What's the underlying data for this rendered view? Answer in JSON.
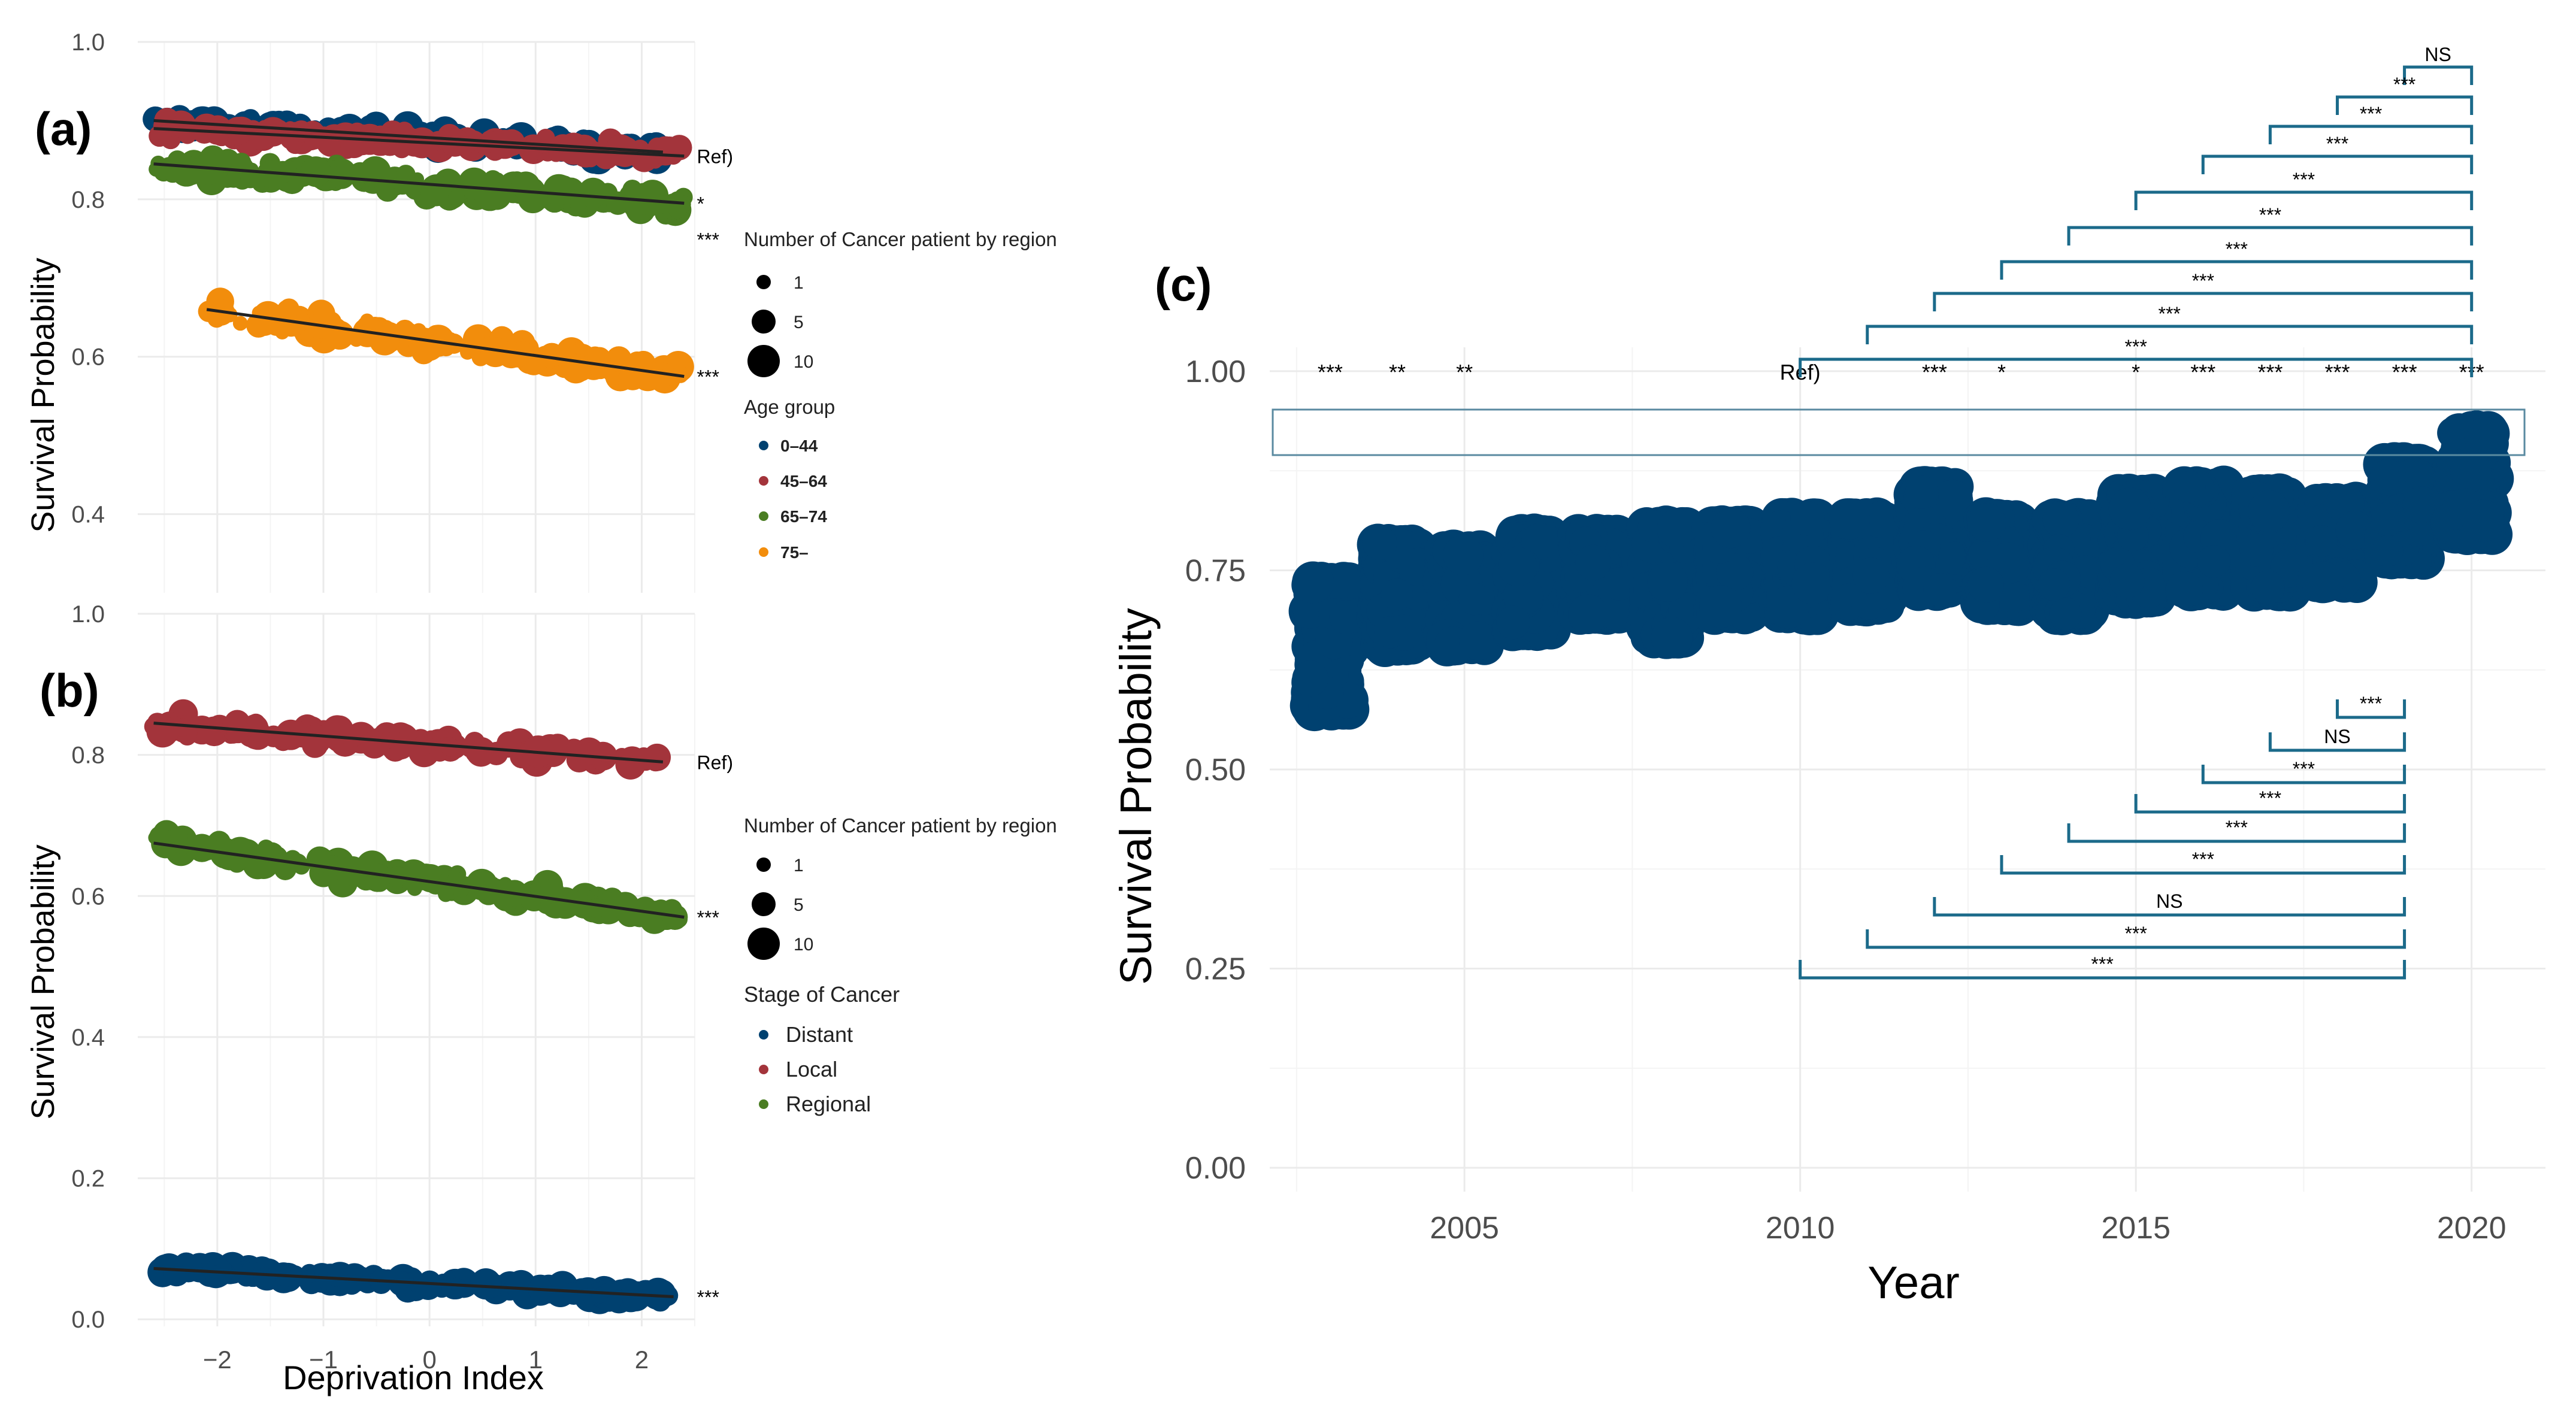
{
  "figure": {
    "colors": {
      "age_0_44": "#004170",
      "age_45_64": "#a3343b",
      "age_65_74": "#4a7d22",
      "age_75": "#f28d0c",
      "stage_distant": "#004170",
      "stage_local": "#a3343b",
      "stage_regional": "#4a7d22",
      "year_points": "#004170",
      "bracket": "#1b6a8a",
      "ref_box": "#5a8aa0"
    }
  },
  "chart_data": [
    {
      "id": "panel-a",
      "panel_label": "(a)",
      "type": "scatter",
      "xlabel": "",
      "ylabel": "Survival Probability",
      "xlim": [
        -2.75,
        2.5
      ],
      "ylim": [
        0.3,
        1.0
      ],
      "x_ticks": [
        -2,
        -1,
        0,
        1,
        2
      ],
      "x_tick_labels": [],
      "y_ticks": [
        0.4,
        0.6,
        0.8,
        1.0
      ],
      "y_tick_labels": [
        "0.4",
        "0.6",
        "0.8",
        "1.0"
      ],
      "grid": true,
      "series": [
        {
          "name": "0–44",
          "color": "#004170",
          "trend": [
            0.9,
            0.86
          ],
          "x_range": [
            -2.6,
            2.2
          ],
          "jitter": 0.016,
          "significance": ""
        },
        {
          "name": "45–64",
          "color": "#a3343b",
          "trend": [
            0.89,
            0.855
          ],
          "x_range": [
            -2.6,
            2.4
          ],
          "jitter": 0.016,
          "significance": "Ref)"
        },
        {
          "name": "65–74",
          "color": "#4a7d22",
          "trend": [
            0.845,
            0.795
          ],
          "x_range": [
            -2.6,
            2.4
          ],
          "jitter": 0.02,
          "significance": "*"
        },
        {
          "name": "75–",
          "color": "#f28d0c",
          "trend": [
            0.66,
            0.575
          ],
          "x_range": [
            -2.1,
            2.4
          ],
          "jitter": 0.02,
          "significance": "***"
        }
      ],
      "extra_significance": "***",
      "legend": {
        "size_title": "Number of Cancer patient by region",
        "size_items": [
          "1",
          "5",
          "10"
        ],
        "color_title": "Age group",
        "color_items": [
          "0–44",
          "45–64",
          "65–74",
          "75–"
        ]
      }
    },
    {
      "id": "panel-b",
      "panel_label": "(b)",
      "type": "scatter",
      "xlabel": "Deprivation Index",
      "ylabel": "Survival Probability",
      "xlim": [
        -2.75,
        2.5
      ],
      "ylim": [
        -0.01,
        1.0
      ],
      "x_ticks": [
        -2,
        -1,
        0,
        1,
        2
      ],
      "x_tick_labels": [
        "−2",
        "−1",
        "0",
        "1",
        "2"
      ],
      "y_ticks": [
        0.0,
        0.2,
        0.4,
        0.6,
        0.8,
        1.0
      ],
      "y_tick_labels": [
        "0.0",
        "0.2",
        "0.4",
        "0.6",
        "0.8",
        "1.0"
      ],
      "grid": true,
      "series": [
        {
          "name": "Local",
          "color": "#a3343b",
          "trend": [
            0.845,
            0.79
          ],
          "x_range": [
            -2.6,
            2.2
          ],
          "jitter": 0.018,
          "significance": "Ref)"
        },
        {
          "name": "Regional",
          "color": "#4a7d22",
          "trend": [
            0.675,
            0.57
          ],
          "x_range": [
            -2.6,
            2.4
          ],
          "jitter": 0.02,
          "significance": "***"
        },
        {
          "name": "Distant",
          "color": "#004170",
          "trend": [
            0.072,
            0.032
          ],
          "x_range": [
            -2.6,
            2.3
          ],
          "jitter": 0.012,
          "significance": "***"
        }
      ],
      "legend": {
        "size_title": "Number of Cancer patient by region",
        "size_items": [
          "1",
          "5",
          "10"
        ],
        "color_title": "Stage of Cancer",
        "color_items": [
          "Distant",
          "Local",
          "Regional"
        ]
      }
    },
    {
      "id": "panel-c",
      "panel_label": "(c)",
      "type": "scatter",
      "xlabel": "Year",
      "ylabel": "Survival Probability",
      "xlim": [
        2002.1,
        2021.1
      ],
      "ylim": [
        -0.03,
        1.03
      ],
      "x_ticks": [
        2005,
        2010,
        2015,
        2020
      ],
      "x_tick_labels": [
        "2005",
        "2010",
        "2015",
        "2020"
      ],
      "y_ticks": [
        0.0,
        0.25,
        0.5,
        0.75,
        1.0
      ],
      "y_tick_labels": [
        "0.00",
        "0.25",
        "0.50",
        "0.75",
        "1.00"
      ],
      "grid": true,
      "years": [
        2003,
        2004,
        2005,
        2006,
        2007,
        2008,
        2009,
        2010,
        2011,
        2012,
        2013,
        2014,
        2015,
        2016,
        2017,
        2018,
        2019,
        2020
      ],
      "year_ranges": [
        [
          0.56,
          0.75
        ],
        [
          0.64,
          0.8
        ],
        [
          0.64,
          0.79
        ],
        [
          0.66,
          0.81
        ],
        [
          0.68,
          0.81
        ],
        [
          0.65,
          0.82
        ],
        [
          0.68,
          0.82
        ],
        [
          0.68,
          0.83
        ],
        [
          0.69,
          0.83
        ],
        [
          0.71,
          0.87
        ],
        [
          0.69,
          0.83
        ],
        [
          0.68,
          0.83
        ],
        [
          0.7,
          0.86
        ],
        [
          0.71,
          0.87
        ],
        [
          0.71,
          0.86
        ],
        [
          0.72,
          0.85
        ],
        [
          0.75,
          0.9
        ],
        [
          0.78,
          0.94
        ]
      ],
      "ref_row": [
        "***",
        "**",
        "**",
        "",
        "",
        "",
        "",
        "Ref)",
        "***",
        "*",
        "*",
        "***",
        "***",
        "***",
        "***",
        "***"
      ],
      "ref_row_years": [
        2003,
        2004,
        2005,
        2006,
        2007,
        2008,
        2009,
        2010,
        2012,
        2013,
        2015,
        2016,
        2017,
        2018,
        2019,
        2020
      ],
      "top_brackets": [
        {
          "from": 2019,
          "to": 2020,
          "label": "NS"
        },
        {
          "from": 2018,
          "to": 2020,
          "label": "***"
        },
        {
          "from": 2017,
          "to": 2020,
          "label": "***"
        },
        {
          "from": 2016,
          "to": 2020,
          "label": "***"
        },
        {
          "from": 2015,
          "to": 2020,
          "label": "***"
        },
        {
          "from": 2014,
          "to": 2020,
          "label": "***"
        },
        {
          "from": 2013,
          "to": 2020,
          "label": "***"
        },
        {
          "from": 2012,
          "to": 2020,
          "label": "***"
        },
        {
          "from": 2011,
          "to": 2020,
          "label": "***"
        },
        {
          "from": 2010,
          "to": 2020,
          "label": "***"
        }
      ],
      "bottom_brackets": [
        {
          "from": 2018,
          "to": 2019,
          "label": "***"
        },
        {
          "from": 2017,
          "to": 2019,
          "label": "NS"
        },
        {
          "from": 2016,
          "to": 2019,
          "label": "***"
        },
        {
          "from": 2015,
          "to": 2019,
          "label": "***"
        },
        {
          "from": 2014,
          "to": 2019,
          "label": "***"
        },
        {
          "from": 2013,
          "to": 2019,
          "label": "***"
        },
        {
          "from": 2012,
          "to": 2019,
          "label": "NS"
        },
        {
          "from": 2011,
          "to": 2019,
          "label": "***"
        },
        {
          "from": 2010,
          "to": 2019,
          "label": "***"
        }
      ]
    }
  ]
}
